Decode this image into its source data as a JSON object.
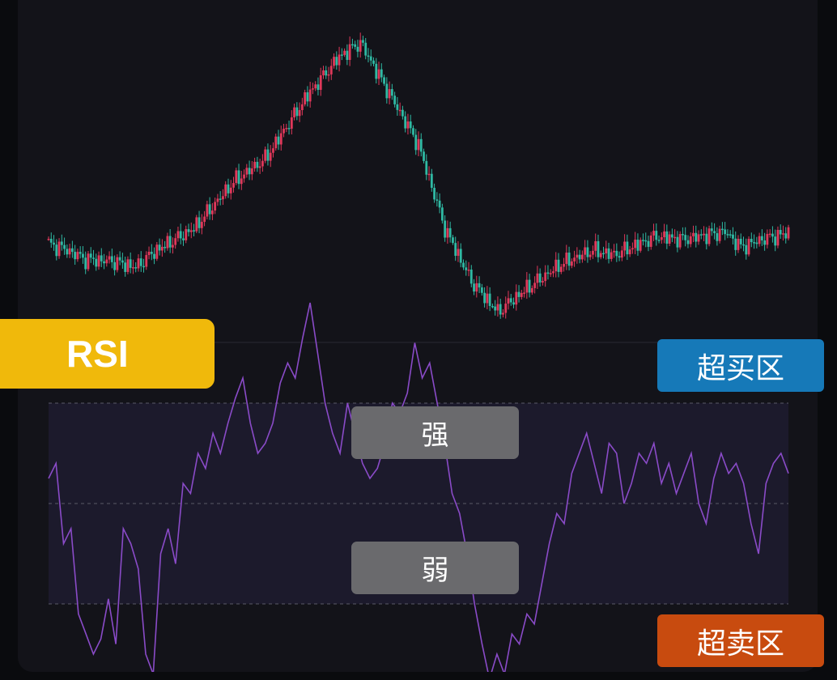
{
  "labels": {
    "indicator": "RSI",
    "overbought": "超买区",
    "oversold": "超卖区",
    "strong": "强",
    "weak": "弱"
  },
  "colors": {
    "up": "#e0385a",
    "down": "#2fb9a3",
    "rsi_line": "#8a4bc8",
    "rsi_band_fill": "#1c1a2c",
    "indicator_tag": "#f0b90b",
    "overbought_tag": "#1679b8",
    "oversold_tag": "#c84b0f",
    "zone_tag": "#6a6a6d"
  },
  "chart_data": [
    {
      "type": "candlestick",
      "grid": false,
      "y_axis_labels": false,
      "close_trend": [
        [
          0,
          12
        ],
        [
          6,
          9
        ],
        [
          14,
          2
        ],
        [
          24,
          1
        ],
        [
          33,
          -3
        ],
        [
          40,
          7
        ],
        [
          55,
          22
        ],
        [
          70,
          52
        ],
        [
          82,
          67
        ],
        [
          98,
          108
        ],
        [
          110,
          133
        ],
        [
          118,
          142
        ],
        [
          128,
          112
        ],
        [
          140,
          76
        ],
        [
          150,
          22
        ],
        [
          160,
          -12
        ],
        [
          170,
          -32
        ],
        [
          180,
          -18
        ],
        [
          194,
          -1
        ],
        [
          206,
          8
        ],
        [
          214,
          5
        ],
        [
          230,
          17
        ],
        [
          240,
          15
        ],
        [
          256,
          20
        ],
        [
          262,
          10
        ],
        [
          270,
          15
        ],
        [
          280,
          19
        ]
      ]
    },
    {
      "type": "line",
      "name": "RSI",
      "levels": [
        30,
        50,
        70
      ],
      "values": [
        55,
        58,
        42,
        45,
        28,
        24,
        20,
        23,
        31,
        22,
        45,
        42,
        37,
        20,
        16,
        40,
        45,
        38,
        54,
        52,
        60,
        57,
        64,
        60,
        66,
        71,
        75,
        66,
        60,
        62,
        66,
        74,
        78,
        75,
        83,
        90,
        80,
        70,
        64,
        60,
        70,
        64,
        58,
        55,
        57,
        62,
        70,
        68,
        72,
        82,
        75,
        78,
        70,
        62,
        52,
        48,
        40,
        30,
        22,
        15,
        20,
        16,
        24,
        22,
        28,
        26,
        34,
        42,
        48,
        46,
        56,
        60,
        64,
        58,
        52,
        62,
        60,
        50,
        54,
        60,
        58,
        62,
        54,
        58,
        52,
        56,
        60,
        50,
        46,
        55,
        60,
        56,
        58,
        54,
        46,
        40,
        54,
        58,
        60,
        56
      ]
    }
  ]
}
